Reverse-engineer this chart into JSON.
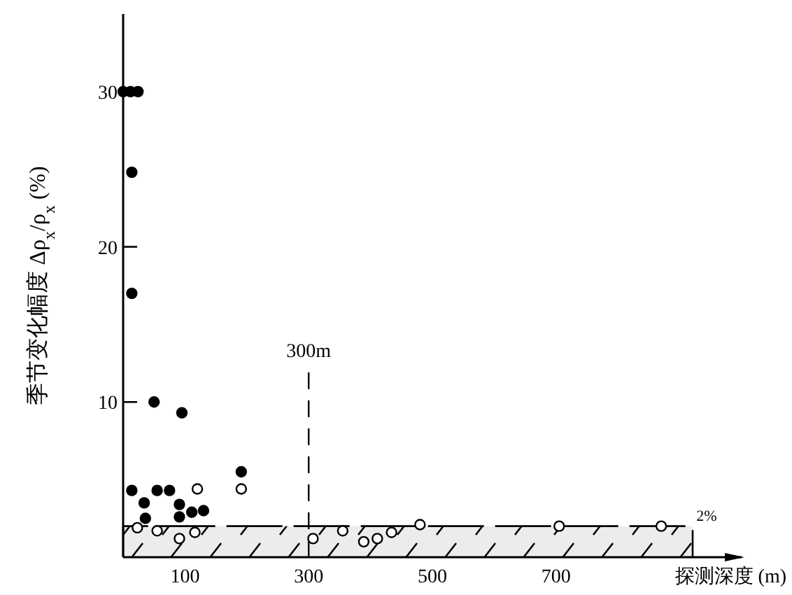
{
  "chart_data": {
    "type": "scatter",
    "xlabel": "探测深度 (m)",
    "ylabel": "季节变化幅度 Δρ$_{x}$/ρ$_{x}$ (%)",
    "xlim": [
      0,
      1000
    ],
    "ylim": [
      0,
      35
    ],
    "xticks": [
      100,
      300,
      500,
      700
    ],
    "yticks": [
      10,
      20,
      30
    ],
    "grid": false,
    "marker": "circle",
    "series": [
      {
        "color": "#000000",
        "x": [
          0,
          12,
          24,
          14,
          14,
          50,
          95,
          14,
          55,
          75,
          34,
          91,
          36,
          91,
          111,
          130,
          191
        ],
        "values": [
          30,
          30,
          30,
          24.8,
          17,
          10,
          9.3,
          4.3,
          4.3,
          4.3,
          3.5,
          3.4,
          2.5,
          2.6,
          2.9,
          3,
          5.5
        ]
      },
      {
        "color": "#ffffff",
        "x": [
          120,
          191,
          23,
          55,
          91,
          116,
          307,
          355,
          389,
          411,
          434,
          480,
          705,
          870
        ],
        "values": [
          4.4,
          4.4,
          1.9,
          1.7,
          1.2,
          1.6,
          1.2,
          1.7,
          1,
          1.2,
          1.6,
          2.1,
          2,
          2
        ]
      }
    ],
    "ref_lines": [
      {
        "axis": "x",
        "value": 300,
        "label": "300m",
        "line_style": "dashed"
      }
    ],
    "bands": [
      {
        "axis": "y",
        "from": 0,
        "to": 2,
        "label": "2%",
        "color": "#ececec"
      }
    ]
  }
}
